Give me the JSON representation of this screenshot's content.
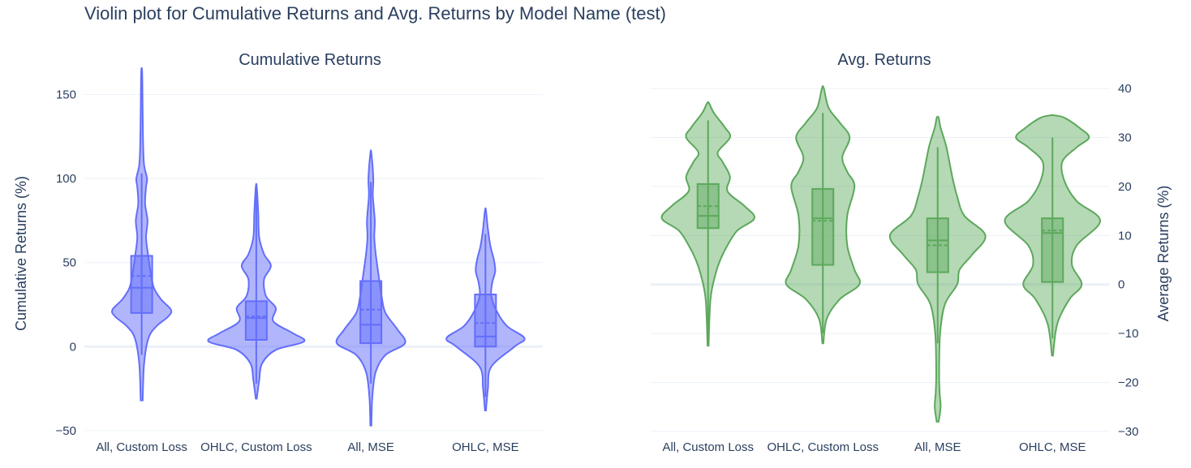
{
  "title": "Violin plot for Cumulative Returns and Avg. Returns by Model Name (test)",
  "colors": {
    "left_line": "#636efa",
    "left_fill": "rgba(99,110,250,0.5)",
    "right_line": "#5ca85c",
    "right_fill": "rgba(92,168,92,0.45)"
  },
  "chart_data": [
    {
      "type": "violin",
      "title": "Cumulative Returns",
      "ylabel": "Cumulative Returns (%)",
      "ylim": [
        -52,
        158
      ],
      "yticks": [
        -50,
        0,
        50,
        100,
        150
      ],
      "ytick_labels": [
        "−50",
        "0",
        "50",
        "100",
        "150"
      ],
      "categories": [
        "All, Custom Loss",
        "OHLC, Custom Loss",
        "All, MSE",
        "OHLC, MSE"
      ],
      "violins": [
        {
          "category": "All, Custom Loss",
          "min": -32,
          "max": 163,
          "q1": 20,
          "median": 35,
          "mean": 42,
          "q3": 54,
          "whisker_low": -5,
          "whisker_high": 103,
          "profile": [
            [
              -32,
              0.02
            ],
            [
              -10,
              0.05
            ],
            [
              5,
              0.14
            ],
            [
              12,
              0.3
            ],
            [
              18,
              0.55
            ],
            [
              22,
              0.6
            ],
            [
              28,
              0.4
            ],
            [
              35,
              0.25
            ],
            [
              45,
              0.18
            ],
            [
              55,
              0.13
            ],
            [
              65,
              0.09
            ],
            [
              75,
              0.12
            ],
            [
              85,
              0.07
            ],
            [
              95,
              0.09
            ],
            [
              100,
              0.11
            ],
            [
              108,
              0.05
            ],
            [
              120,
              0.03
            ],
            [
              140,
              0.02
            ],
            [
              163,
              0.01
            ]
          ]
        },
        {
          "category": "OHLC, Custom Loss",
          "min": -31,
          "max": 95,
          "q1": 4,
          "median": 17,
          "mean": 18,
          "q3": 27,
          "whisker_low": -22,
          "whisker_high": 93,
          "profile": [
            [
              -31,
              0.01
            ],
            [
              -20,
              0.06
            ],
            [
              -10,
              0.12
            ],
            [
              -2,
              0.4
            ],
            [
              3,
              0.98
            ],
            [
              8,
              0.75
            ],
            [
              15,
              0.35
            ],
            [
              23,
              0.4
            ],
            [
              30,
              0.2
            ],
            [
              40,
              0.16
            ],
            [
              48,
              0.3
            ],
            [
              55,
              0.16
            ],
            [
              65,
              0.06
            ],
            [
              80,
              0.04
            ],
            [
              95,
              0.01
            ]
          ]
        },
        {
          "category": "All, MSE",
          "min": -47,
          "max": 115,
          "q1": 2,
          "median": 13,
          "mean": 22,
          "q3": 39,
          "whisker_low": -22,
          "whisker_high": 98,
          "profile": [
            [
              -47,
              0.01
            ],
            [
              -30,
              0.03
            ],
            [
              -15,
              0.1
            ],
            [
              -5,
              0.3
            ],
            [
              2,
              0.7
            ],
            [
              10,
              0.55
            ],
            [
              20,
              0.3
            ],
            [
              30,
              0.22
            ],
            [
              40,
              0.17
            ],
            [
              55,
              0.1
            ],
            [
              65,
              0.07
            ],
            [
              75,
              0.08
            ],
            [
              90,
              0.04
            ],
            [
              100,
              0.05
            ],
            [
              115,
              0.01
            ]
          ]
        },
        {
          "category": "OHLC, MSE",
          "min": -38,
          "max": 81,
          "q1": 0,
          "median": 6,
          "mean": 14,
          "q3": 31,
          "whisker_low": -30,
          "whisker_high": 67,
          "profile": [
            [
              -38,
              0.01
            ],
            [
              -25,
              0.05
            ],
            [
              -12,
              0.12
            ],
            [
              0,
              0.6
            ],
            [
              5,
              0.8
            ],
            [
              12,
              0.45
            ],
            [
              20,
              0.25
            ],
            [
              30,
              0.12
            ],
            [
              38,
              0.14
            ],
            [
              45,
              0.2
            ],
            [
              52,
              0.17
            ],
            [
              60,
              0.1
            ],
            [
              70,
              0.05
            ],
            [
              81,
              0.01
            ]
          ]
        }
      ]
    },
    {
      "type": "violin",
      "title": "Avg. Returns",
      "ylabel": "Average Returns (%)",
      "ylim": [
        -30.5,
        41.5
      ],
      "yticks": [
        -30,
        -20,
        -10,
        0,
        10,
        20,
        30,
        40
      ],
      "ytick_labels": [
        "−30",
        "−20",
        "−10",
        "0",
        "10",
        "20",
        "30",
        "40"
      ],
      "categories": [
        "All, Custom Loss",
        "OHLC, Custom Loss",
        "All, MSE",
        "OHLC, MSE"
      ],
      "violins": [
        {
          "category": "All, Custom Loss",
          "min": -12.5,
          "max": 37,
          "q1": 11.5,
          "median": 14,
          "mean": 16,
          "q3": 20.5,
          "whisker_low": -11.5,
          "whisker_high": 33.5,
          "profile": [
            [
              -12.5,
              0.01
            ],
            [
              -3,
              0.05
            ],
            [
              2,
              0.15
            ],
            [
              5,
              0.25
            ],
            [
              8,
              0.4
            ],
            [
              11,
              0.6
            ],
            [
              13.5,
              0.95
            ],
            [
              16,
              0.75
            ],
            [
              19,
              0.4
            ],
            [
              22,
              0.45
            ],
            [
              25,
              0.3
            ],
            [
              27,
              0.2
            ],
            [
              30,
              0.45
            ],
            [
              32,
              0.35
            ],
            [
              35,
              0.12
            ],
            [
              37,
              0.02
            ]
          ]
        },
        {
          "category": "OHLC, Custom Loss",
          "min": -12,
          "max": 40,
          "q1": 4,
          "median": 13.5,
          "mean": 13,
          "q3": 19.5,
          "whisker_low": -10,
          "whisker_high": 35,
          "profile": [
            [
              -12,
              0.01
            ],
            [
              -7,
              0.08
            ],
            [
              -3,
              0.35
            ],
            [
              0,
              0.75
            ],
            [
              3,
              0.65
            ],
            [
              8,
              0.5
            ],
            [
              14,
              0.5
            ],
            [
              20,
              0.65
            ],
            [
              23,
              0.5
            ],
            [
              26,
              0.4
            ],
            [
              30,
              0.55
            ],
            [
              33,
              0.35
            ],
            [
              36,
              0.12
            ],
            [
              40,
              0.02
            ]
          ]
        },
        {
          "category": "All, MSE",
          "min": -28,
          "max": 34,
          "q1": 2.5,
          "median": 9,
          "mean": 8,
          "q3": 13.5,
          "whisker_low": -12,
          "whisker_high": 28,
          "profile": [
            [
              -28,
              0.02
            ],
            [
              -25,
              0.06
            ],
            [
              -22,
              0.04
            ],
            [
              -18,
              0.03
            ],
            [
              -10,
              0.05
            ],
            [
              -4,
              0.15
            ],
            [
              0,
              0.4
            ],
            [
              3,
              0.45
            ],
            [
              6,
              0.7
            ],
            [
              10,
              0.98
            ],
            [
              14,
              0.55
            ],
            [
              18,
              0.4
            ],
            [
              22,
              0.3
            ],
            [
              28,
              0.18
            ],
            [
              32,
              0.06
            ],
            [
              34,
              0.02
            ]
          ]
        },
        {
          "category": "OHLC, MSE",
          "min": -14.5,
          "max": 34.5,
          "q1": 0.5,
          "median": 10.5,
          "mean": 11,
          "q3": 13.5,
          "whisker_low": -11,
          "whisker_high": 30,
          "profile": [
            [
              -14.5,
              0.01
            ],
            [
              -8,
              0.1
            ],
            [
              -3,
              0.35
            ],
            [
              0,
              0.6
            ],
            [
              4,
              0.4
            ],
            [
              8,
              0.5
            ],
            [
              13,
              0.98
            ],
            [
              17,
              0.5
            ],
            [
              21,
              0.25
            ],
            [
              25,
              0.2
            ],
            [
              28,
              0.5
            ],
            [
              30,
              0.75
            ],
            [
              32,
              0.55
            ],
            [
              34,
              0.25
            ],
            [
              34.5,
              0.05
            ]
          ]
        }
      ]
    }
  ]
}
